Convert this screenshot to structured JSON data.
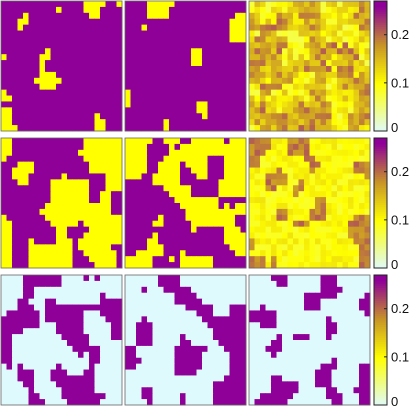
{
  "chart_data": {
    "type": "heatmap",
    "title": "",
    "layout": {
      "rows": 3,
      "columns": 3
    },
    "grid_size": [
      22,
      22
    ],
    "colorscale": {
      "stops": [
        {
          "value": 0,
          "color": "#dffafd"
        },
        {
          "value": 0.1,
          "color": "#ffff00"
        },
        {
          "value": 0.18,
          "color": "#c89428"
        },
        {
          "value": 0.26,
          "color": "#8e0098"
        }
      ],
      "range": [
        0,
        0.27
      ],
      "ticks": [
        {
          "value": 0,
          "label": "0"
        },
        {
          "value": 0.1,
          "label": "0.1"
        },
        {
          "value": 0.2,
          "label": "0.2"
        }
      ]
    },
    "rows": [
      {
        "colorbar": true,
        "panels": [
          {
            "base": 0.26,
            "hot": 0.1,
            "hotFraction": 0.1,
            "noise": 0.0,
            "seed": 3
          },
          {
            "base": 0.26,
            "hot": 0.1,
            "hotFraction": 0.09,
            "noise": 0.0,
            "seed": 5
          },
          {
            "base": 0.17,
            "hot": 0.11,
            "hotFraction": 0.45,
            "noise": 0.04,
            "seed": 7
          }
        ]
      },
      {
        "colorbar": true,
        "panels": [
          {
            "base": 0.26,
            "hot": 0.1,
            "hotFraction": 0.52,
            "noise": 0.0,
            "seed": 11
          },
          {
            "base": 0.26,
            "hot": 0.1,
            "hotFraction": 0.5,
            "noise": 0.0,
            "seed": 13
          },
          {
            "base": 0.1,
            "hot": 0.19,
            "hotFraction": 0.22,
            "noise": 0.02,
            "seed": 17
          }
        ]
      },
      {
        "colorbar": true,
        "panels": [
          {
            "base": 0.0,
            "hot": 0.26,
            "hotFraction": 0.4,
            "noise": 0.0,
            "seed": 19
          },
          {
            "base": 0.0,
            "hot": 0.26,
            "hotFraction": 0.35,
            "noise": 0.0,
            "seed": 23
          },
          {
            "base": 0.0,
            "hot": 0.26,
            "hotFraction": 0.25,
            "noise": 0.0,
            "seed": 29
          }
        ]
      }
    ]
  }
}
